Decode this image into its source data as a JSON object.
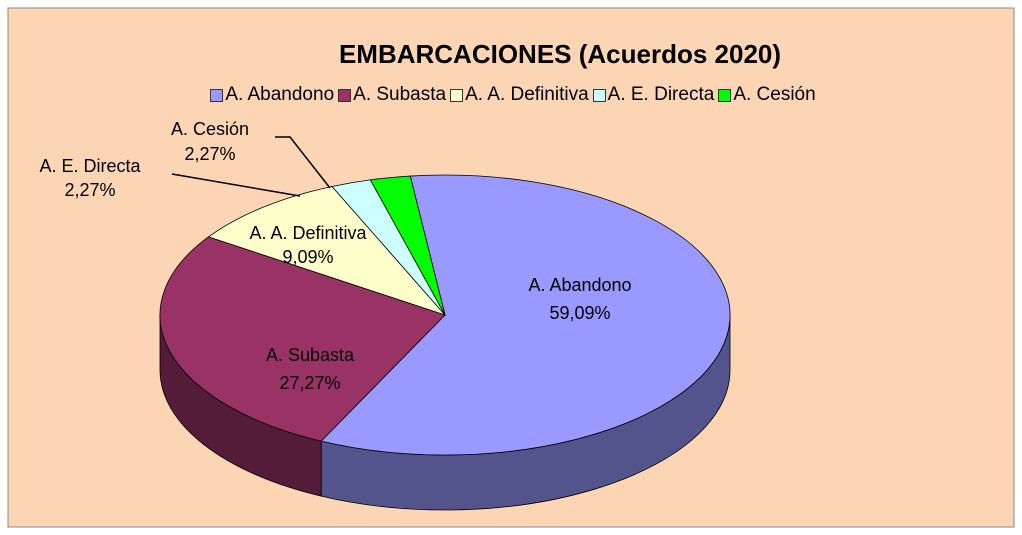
{
  "chart_data": {
    "type": "pie",
    "title": "EMBARCACIONES (Acuerdos 2020)",
    "categories": [
      "A. Abandono",
      "A. Subasta",
      "A. A. Definitiva",
      "A. E. Directa",
      "A. Cesión"
    ],
    "values": [
      59.09,
      27.27,
      9.09,
      2.27,
      2.27
    ],
    "value_labels": [
      "59,09%",
      "27,27%",
      "9,09%",
      "2,27%",
      "2,27%"
    ],
    "colors": [
      "#9999ff",
      "#993366",
      "#ffffcc",
      "#ccffff",
      "#00ff00"
    ],
    "legend": "top"
  }
}
